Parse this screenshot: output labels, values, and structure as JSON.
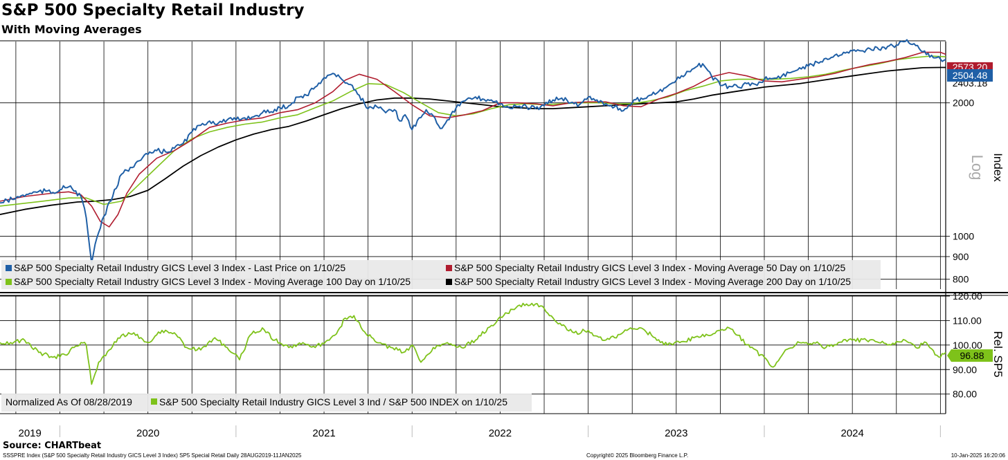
{
  "header": {
    "title": "S&P 500 Specialty Retail Industry",
    "subtitle": "With Moving Averages"
  },
  "footer": {
    "source": "Source: CHARTbeat",
    "description": "SSSPRE Index (S&P 500 Specialty Retail Industry GICS Level 3 Index) SP5 Special Retail  Daily 28AUG2019-11JAN2025",
    "copyright": "Copyright© 2025 Bloomberg Finance L.P.",
    "timestamp": "10-Jan-2025 16:20:06"
  },
  "colors": {
    "price": "#1f5fa6",
    "ma50": "#b01c2e",
    "ma100": "#7ec21a",
    "ma200": "#000000",
    "ratio": "#7ec21a"
  },
  "chart_data": [
    {
      "type": "line",
      "panel": "upper",
      "scale": "log",
      "ylabel": "Index",
      "scale_label": "Log",
      "ylim": [
        760,
        2750
      ],
      "yticks": [
        800,
        900,
        1000,
        2000
      ],
      "x_range": [
        2019.66,
        2025.03
      ],
      "x_year_boundaries": [
        2020,
        2021,
        2022,
        2023,
        2024,
        2025
      ],
      "legend": [
        "S&P 500 Specialty Retail Industry GICS Level 3 Index - Last Price on 1/10/25",
        "S&P 500 Specialty Retail Industry GICS Level 3 Index - Moving Average 50 Day on 1/10/25",
        "S&P 500 Specialty Retail Industry GICS Level 3 Index - Moving Average 100 Day on 1/10/25",
        "S&P 500 Specialty Retail Industry GICS Level 3 Index - Moving Average 200 Day on 1/10/25"
      ],
      "last_value_labels": {
        "ma50": "2573.20",
        "price": "2504.48",
        "ma200": "2403.18"
      },
      "series": [
        {
          "name": "Last Price",
          "key": "price",
          "x": [
            2019.66,
            2019.75,
            2019.83,
            2019.92,
            2019.97,
            2020.02,
            2020.07,
            2020.12,
            2020.15,
            2020.18,
            2020.2,
            2020.22,
            2020.25,
            2020.3,
            2020.35,
            2020.4,
            2020.45,
            2020.5,
            2020.55,
            2020.6,
            2020.65,
            2020.7,
            2020.75,
            2020.8,
            2020.85,
            2020.9,
            2020.95,
            2021.0,
            2021.05,
            2021.1,
            2021.15,
            2021.2,
            2021.25,
            2021.3,
            2021.35,
            2021.4,
            2021.45,
            2021.5,
            2021.55,
            2021.6,
            2021.65,
            2021.7,
            2021.75,
            2021.8,
            2021.85,
            2021.9,
            2021.93,
            2021.96,
            2022.0,
            2022.04,
            2022.08,
            2022.12,
            2022.16,
            2022.2,
            2022.25,
            2022.3,
            2022.35,
            2022.4,
            2022.45,
            2022.5,
            2022.55,
            2022.6,
            2022.65,
            2022.7,
            2022.75,
            2022.8,
            2022.85,
            2022.9,
            2022.95,
            2023.0,
            2023.05,
            2023.1,
            2023.15,
            2023.2,
            2023.25,
            2023.3,
            2023.35,
            2023.4,
            2023.45,
            2023.5,
            2023.55,
            2023.6,
            2023.65,
            2023.7,
            2023.75,
            2023.8,
            2023.85,
            2023.9,
            2023.95,
            2024.0,
            2024.05,
            2024.1,
            2024.15,
            2024.2,
            2024.25,
            2024.3,
            2024.35,
            2024.4,
            2024.45,
            2024.5,
            2024.55,
            2024.6,
            2024.65,
            2024.7,
            2024.75,
            2024.8,
            2024.85,
            2024.88,
            2024.92,
            2024.95,
            2024.98,
            2025.0,
            2025.03
          ],
          "y": [
            1190,
            1220,
            1250,
            1265,
            1250,
            1300,
            1280,
            1230,
            1100,
            870,
            960,
            1020,
            1110,
            1230,
            1380,
            1430,
            1480,
            1530,
            1560,
            1550,
            1580,
            1620,
            1720,
            1780,
            1820,
            1800,
            1830,
            1830,
            1850,
            1860,
            1900,
            1910,
            1950,
            1970,
            2060,
            2080,
            2170,
            2280,
            2330,
            2260,
            2200,
            2080,
            1940,
            1960,
            1900,
            1930,
            1820,
            1880,
            1740,
            1850,
            1930,
            1870,
            1750,
            1830,
            1950,
            2020,
            2050,
            2040,
            2030,
            1990,
            1950,
            1960,
            1960,
            1940,
            1970,
            2030,
            2050,
            2000,
            1980,
            2060,
            2030,
            1990,
            1960,
            1920,
            2000,
            2050,
            2080,
            2120,
            2180,
            2250,
            2310,
            2390,
            2450,
            2300,
            2190,
            2180,
            2170,
            2210,
            2200,
            2260,
            2270,
            2300,
            2340,
            2400,
            2420,
            2470,
            2520,
            2560,
            2600,
            2620,
            2620,
            2650,
            2640,
            2680,
            2700,
            2750,
            2720,
            2650,
            2570,
            2560,
            2530,
            2510,
            2504
          ]
        },
        {
          "name": "Moving Average 50 Day",
          "key": "ma50",
          "x": [
            2019.66,
            2019.8,
            2019.95,
            2020.05,
            2020.12,
            2020.18,
            2020.23,
            2020.28,
            2020.33,
            2020.38,
            2020.45,
            2020.55,
            2020.65,
            2020.75,
            2020.85,
            2020.95,
            2021.05,
            2021.15,
            2021.25,
            2021.35,
            2021.45,
            2021.55,
            2021.62,
            2021.7,
            2021.8,
            2021.9,
            2022.0,
            2022.1,
            2022.2,
            2022.3,
            2022.4,
            2022.5,
            2022.6,
            2022.7,
            2022.8,
            2022.9,
            2023.0,
            2023.1,
            2023.2,
            2023.3,
            2023.4,
            2023.5,
            2023.6,
            2023.7,
            2023.8,
            2023.9,
            2024.0,
            2024.1,
            2024.2,
            2024.3,
            2024.4,
            2024.5,
            2024.6,
            2024.7,
            2024.8,
            2024.9,
            2025.0,
            2025.03
          ],
          "y": [
            1200,
            1230,
            1250,
            1260,
            1240,
            1170,
            1080,
            1050,
            1120,
            1250,
            1380,
            1500,
            1560,
            1650,
            1760,
            1800,
            1830,
            1850,
            1900,
            1930,
            2000,
            2120,
            2250,
            2320,
            2260,
            2120,
            1980,
            1870,
            1850,
            1880,
            1920,
            2000,
            2000,
            1990,
            1970,
            2000,
            2010,
            2010,
            1970,
            1960,
            2040,
            2100,
            2180,
            2290,
            2340,
            2300,
            2240,
            2230,
            2260,
            2290,
            2330,
            2390,
            2440,
            2480,
            2530,
            2600,
            2600,
            2573
          ]
        },
        {
          "name": "Moving Average 100 Day",
          "key": "ma100",
          "x": [
            2019.66,
            2019.9,
            2020.05,
            2020.15,
            2020.25,
            2020.35,
            2020.45,
            2020.55,
            2020.65,
            2020.75,
            2020.85,
            2020.95,
            2021.05,
            2021.15,
            2021.25,
            2021.35,
            2021.45,
            2021.55,
            2021.65,
            2021.75,
            2021.85,
            2021.95,
            2022.05,
            2022.15,
            2022.25,
            2022.35,
            2022.45,
            2022.55,
            2022.65,
            2022.75,
            2022.85,
            2022.95,
            2023.05,
            2023.15,
            2023.25,
            2023.35,
            2023.45,
            2023.55,
            2023.65,
            2023.75,
            2023.85,
            2023.95,
            2024.05,
            2024.15,
            2024.25,
            2024.35,
            2024.45,
            2024.55,
            2024.65,
            2024.75,
            2024.85,
            2024.95,
            2025.03
          ],
          "y": [
            1170,
            1200,
            1220,
            1220,
            1180,
            1200,
            1310,
            1430,
            1560,
            1660,
            1720,
            1760,
            1790,
            1810,
            1850,
            1880,
            1950,
            2020,
            2120,
            2210,
            2200,
            2110,
            2000,
            1900,
            1870,
            1890,
            1940,
            1980,
            1990,
            1980,
            1990,
            2000,
            2000,
            1990,
            1990,
            2020,
            2060,
            2130,
            2180,
            2240,
            2260,
            2260,
            2260,
            2270,
            2290,
            2320,
            2370,
            2410,
            2450,
            2500,
            2530,
            2550,
            2540
          ]
        },
        {
          "name": "Moving Average 200 Day",
          "key": "ma200",
          "x": [
            2019.66,
            2019.8,
            2019.95,
            2020.1,
            2020.2,
            2020.3,
            2020.4,
            2020.5,
            2020.6,
            2020.7,
            2020.8,
            2020.9,
            2021.0,
            2021.1,
            2021.2,
            2021.3,
            2021.4,
            2021.5,
            2021.6,
            2021.7,
            2021.8,
            2021.9,
            2022.0,
            2022.1,
            2022.2,
            2022.3,
            2022.4,
            2022.5,
            2022.6,
            2022.7,
            2022.8,
            2022.9,
            2023.0,
            2023.1,
            2023.2,
            2023.3,
            2023.4,
            2023.5,
            2023.6,
            2023.7,
            2023.8,
            2023.9,
            2024.0,
            2024.1,
            2024.2,
            2024.3,
            2024.4,
            2024.5,
            2024.6,
            2024.7,
            2024.8,
            2024.9,
            2025.0,
            2025.03
          ],
          "y": [
            1120,
            1150,
            1175,
            1195,
            1200,
            1210,
            1230,
            1270,
            1350,
            1440,
            1520,
            1590,
            1650,
            1700,
            1740,
            1770,
            1820,
            1880,
            1940,
            1990,
            2030,
            2050,
            2050,
            2040,
            2020,
            2000,
            1980,
            1960,
            1950,
            1940,
            1940,
            1950,
            1960,
            1970,
            1980,
            1990,
            2000,
            2010,
            2040,
            2080,
            2110,
            2140,
            2170,
            2190,
            2210,
            2240,
            2270,
            2300,
            2330,
            2360,
            2380,
            2400,
            2403,
            2403
          ]
        }
      ]
    },
    {
      "type": "line",
      "panel": "lower",
      "ylabel": "Rel. SP5",
      "ylim": [
        72,
        120
      ],
      "yticks": [
        80.0,
        90.0,
        100.0,
        110.0,
        120.0
      ],
      "ytick_labels": [
        "80.00",
        "90.00",
        "100.00",
        "110.00",
        "120.00"
      ],
      "x_range": [
        2019.66,
        2025.03
      ],
      "legend_note": "Normalized As Of 08/28/2019",
      "legend": [
        "S&P 500 Specialty Retail Industry GICS Level 3 Ind / S&P 500 INDEX on 1/10/25"
      ],
      "last_value_label": "96.88",
      "series": [
        {
          "name": "Specialty Retail / S&P 500",
          "key": "ratio",
          "x": [
            2019.66,
            2019.72,
            2019.8,
            2019.88,
            2019.96,
            2020.03,
            2020.08,
            2020.12,
            2020.15,
            2020.18,
            2020.22,
            2020.28,
            2020.35,
            2020.42,
            2020.5,
            2020.58,
            2020.65,
            2020.72,
            2020.8,
            2020.88,
            2020.95,
            2021.02,
            2021.08,
            2021.15,
            2021.22,
            2021.3,
            2021.38,
            2021.45,
            2021.52,
            2021.58,
            2021.62,
            2021.67,
            2021.72,
            2021.8,
            2021.88,
            2021.95,
            2022.0,
            2022.05,
            2022.12,
            2022.2,
            2022.28,
            2022.36,
            2022.45,
            2022.52,
            2022.6,
            2022.68,
            2022.73,
            2022.78,
            2022.85,
            2022.92,
            2023.0,
            2023.08,
            2023.15,
            2023.22,
            2023.3,
            2023.38,
            2023.45,
            2023.52,
            2023.6,
            2023.68,
            2023.75,
            2023.8,
            2023.85,
            2023.92,
            2024.0,
            2024.05,
            2024.12,
            2024.2,
            2024.28,
            2024.35,
            2024.42,
            2024.5,
            2024.58,
            2024.65,
            2024.72,
            2024.8,
            2024.86,
            2024.92,
            2024.97,
            2025.0,
            2025.03
          ],
          "y": [
            101,
            101,
            102,
            97,
            95,
            96,
            99,
            101,
            100,
            84,
            93,
            98,
            104,
            105,
            101,
            106,
            105,
            99,
            98,
            103,
            99,
            94,
            104,
            107,
            102,
            99,
            101,
            99,
            102,
            106,
            111,
            112,
            106,
            101,
            99,
            97,
            100,
            93,
            99,
            101,
            99,
            102,
            108,
            112,
            116,
            117,
            116,
            112,
            108,
            105,
            106,
            102,
            103,
            106,
            107,
            103,
            100,
            101,
            103,
            104,
            106,
            107,
            104,
            99,
            95,
            91,
            98,
            101,
            101,
            99,
            101,
            102,
            102,
            101,
            100,
            102,
            99,
            101,
            96,
            95,
            97
          ]
        }
      ]
    }
  ],
  "x_axis": {
    "year_labels": [
      "2019",
      "2020",
      "2021",
      "2022",
      "2023",
      "2024"
    ]
  }
}
